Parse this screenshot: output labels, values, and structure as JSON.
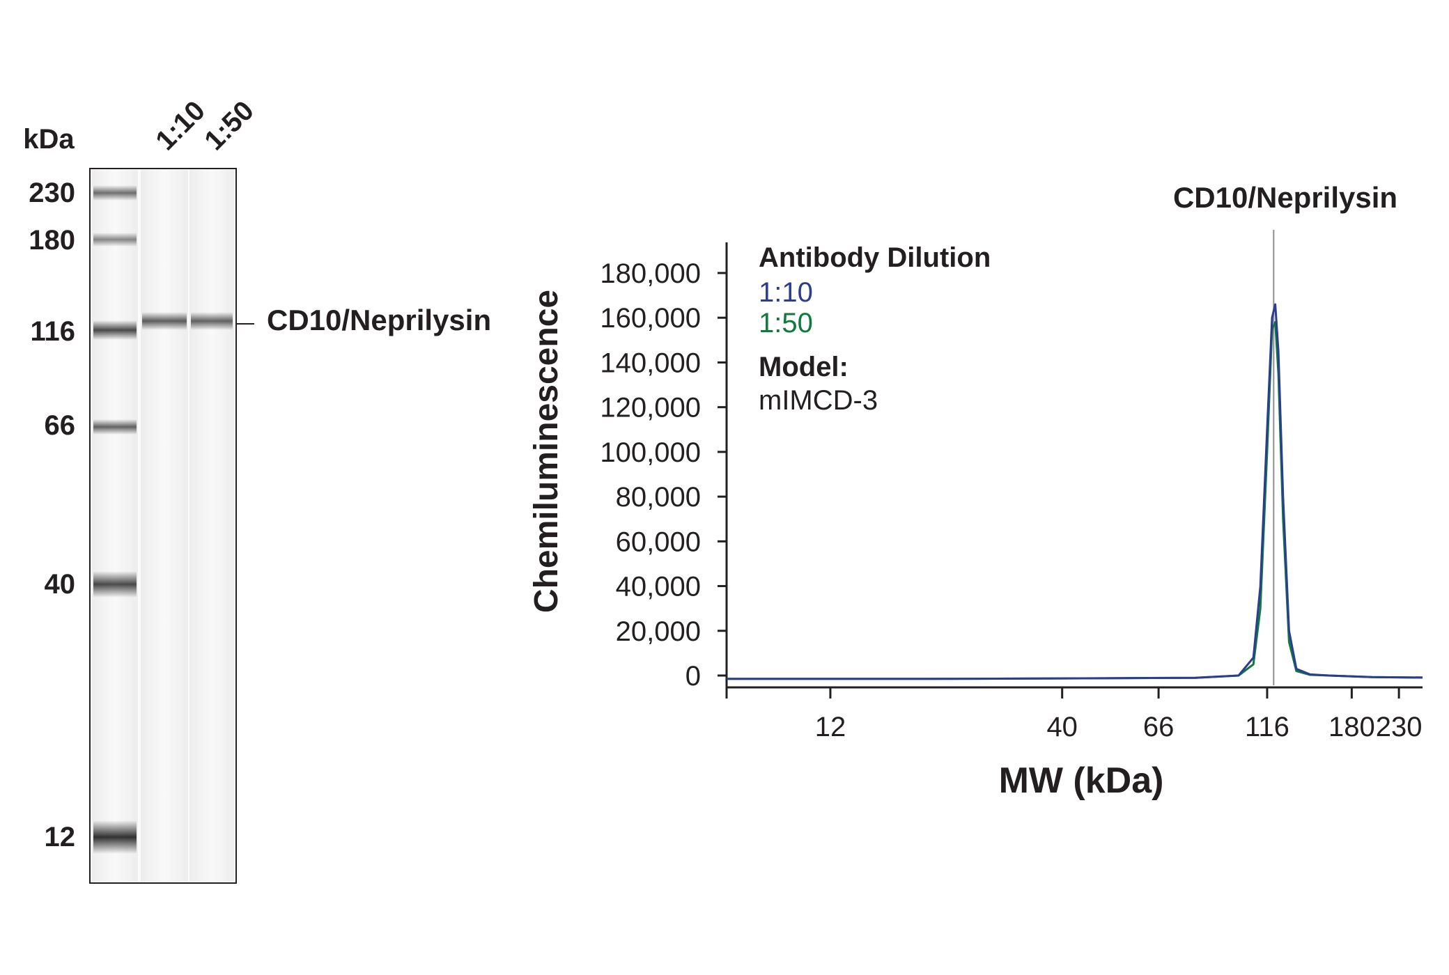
{
  "blot": {
    "kda_label": "kDa",
    "markers": [
      "230",
      "180",
      "116",
      "66",
      "40",
      "12"
    ],
    "lanes": [
      "1:10",
      "1:50"
    ],
    "band_label": "CD10/Neprilysin"
  },
  "chart_data": {
    "type": "line",
    "title": "CD10/Neprilysin",
    "xlabel": "MW (kDa)",
    "ylabel": "Chemiluminescence",
    "x_scale": "log",
    "xlim": [
      7,
      260
    ],
    "ylim": [
      0,
      180000
    ],
    "x_ticks": [
      12,
      40,
      66,
      116,
      180,
      230
    ],
    "y_ticks": [
      0,
      20000,
      40000,
      60000,
      80000,
      100000,
      120000,
      140000,
      160000,
      180000
    ],
    "y_tick_labels": [
      "0",
      "20,000",
      "40,000",
      "60,000",
      "80,000",
      "100,000",
      "120,000",
      "140,000",
      "160,000",
      "180,000"
    ],
    "peak_marker_x": 120,
    "legend": {
      "title": "Antibody Dilution",
      "model_label": "Model:",
      "model_value": "mIMCD-3"
    },
    "series": [
      {
        "name": "1:10",
        "color": "#2b3d91",
        "x": [
          7,
          20,
          50,
          80,
          100,
          108,
          112,
          116,
          119,
          121,
          123,
          126,
          130,
          135,
          145,
          160,
          200,
          260
        ],
        "y": [
          -1500,
          -1500,
          -1200,
          -1000,
          0,
          8000,
          40000,
          110000,
          160000,
          166000,
          145000,
          80000,
          20000,
          3000,
          500,
          0,
          -700,
          -900
        ]
      },
      {
        "name": "1:50",
        "color": "#0e7a3b",
        "x": [
          7,
          20,
          50,
          80,
          100,
          108,
          112,
          116,
          119,
          121,
          123,
          126,
          130,
          135,
          145,
          160,
          200,
          260
        ],
        "y": [
          -1500,
          -1500,
          -1200,
          -1000,
          0,
          5000,
          30000,
          100000,
          155000,
          158000,
          135000,
          70000,
          15000,
          2000,
          300,
          0,
          -700,
          -900
        ]
      }
    ]
  }
}
